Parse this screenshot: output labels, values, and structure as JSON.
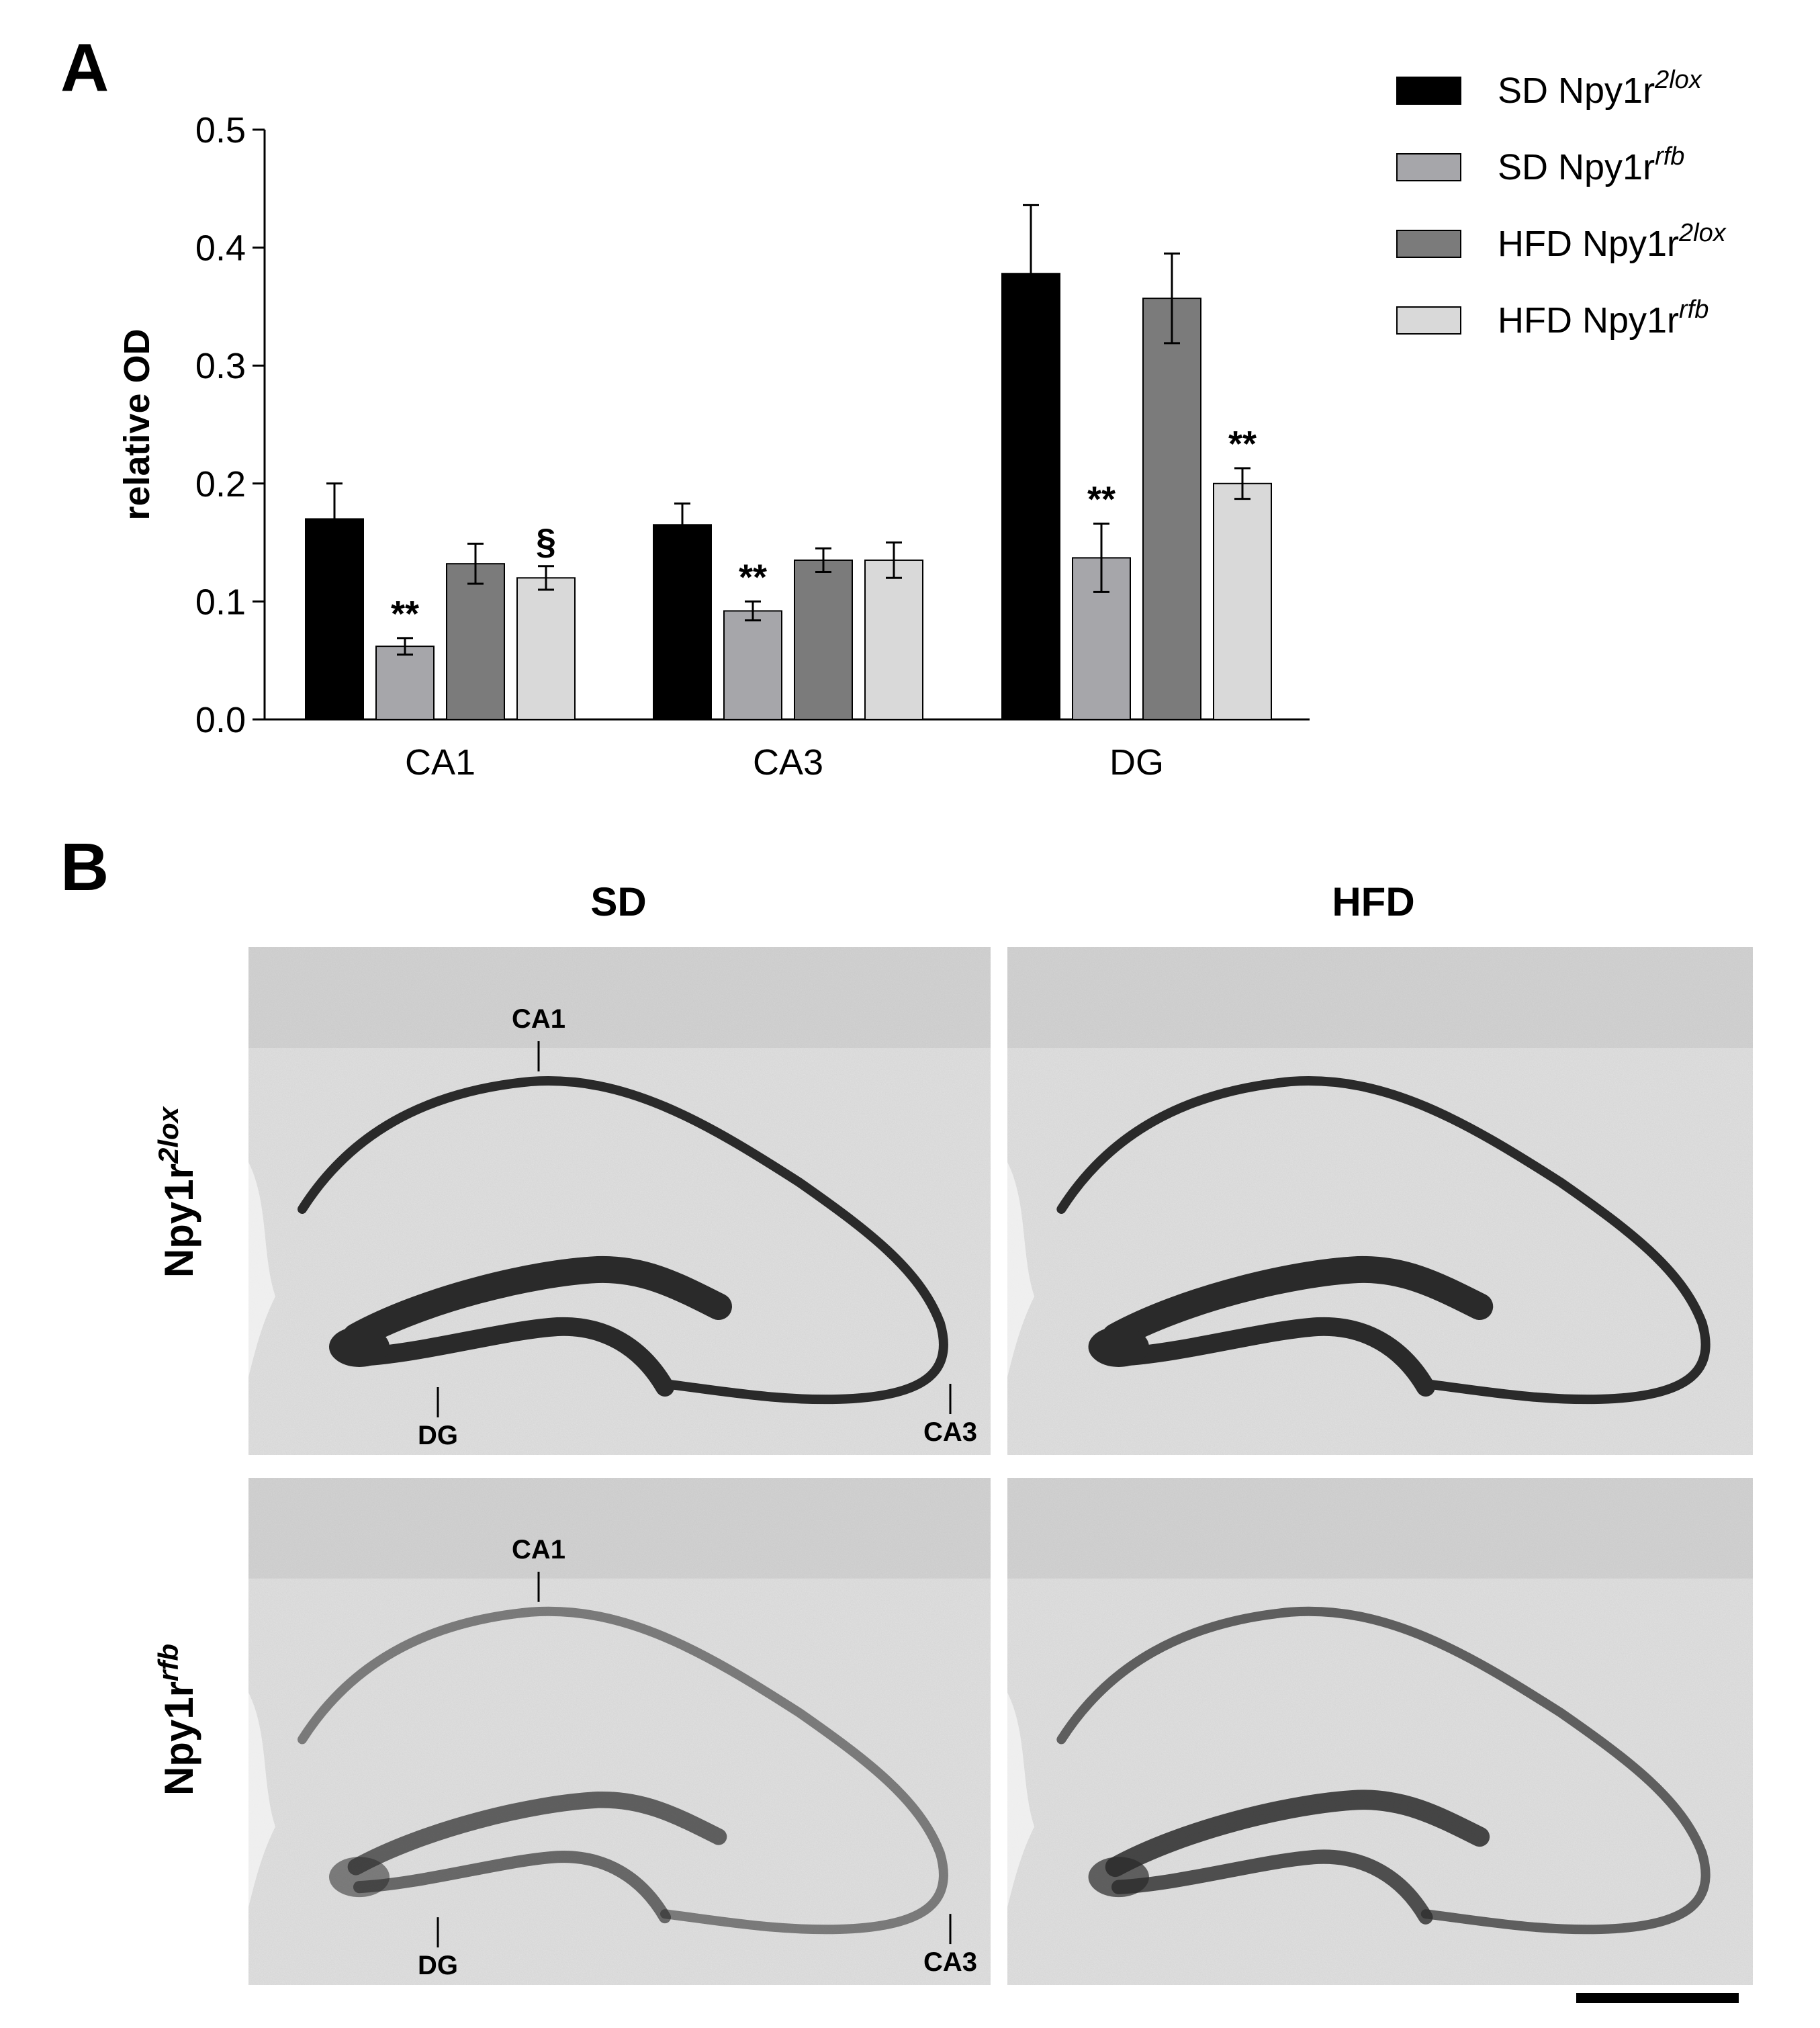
{
  "panels": {
    "a_label": "A",
    "b_label": "B"
  },
  "chart_data": {
    "type": "bar",
    "categories": [
      "CA1",
      "CA3",
      "DG"
    ],
    "ylabel": "relative OD",
    "xlabel": "",
    "ylim": [
      0,
      0.5
    ],
    "yticks": [
      "0.0",
      "0.1",
      "0.2",
      "0.3",
      "0.4",
      "0.5"
    ],
    "grid": false,
    "legend_position": "top-right",
    "series": [
      {
        "name": "SD Npy1r",
        "name_sup": "2lox",
        "color": "#000000",
        "values": [
          0.17,
          0.165,
          0.378
        ],
        "errors": [
          0.03,
          0.018,
          0.058
        ],
        "annotations": [
          "",
          "",
          ""
        ]
      },
      {
        "name": "SD Npy1r",
        "name_sup": "rfb",
        "color": "#a6a6aa",
        "values": [
          0.062,
          0.092,
          0.137
        ],
        "errors": [
          0.007,
          0.008,
          0.029
        ],
        "annotations": [
          "**",
          "**",
          "**"
        ]
      },
      {
        "name": "HFD Npy1r",
        "name_sup": "2lox",
        "color": "#7b7b7b",
        "values": [
          0.132,
          0.135,
          0.357
        ],
        "errors": [
          0.017,
          0.01,
          0.038
        ],
        "annotations": [
          "",
          "",
          ""
        ]
      },
      {
        "name": "HFD Npy1r",
        "name_sup": "rfb",
        "color": "#d9d9d9",
        "values": [
          0.12,
          0.135,
          0.2
        ],
        "errors": [
          0.01,
          0.015,
          0.013
        ],
        "annotations": [
          "§",
          "",
          "**"
        ]
      }
    ]
  },
  "micrographs": {
    "col_headers": [
      "SD",
      "HFD"
    ],
    "row_headers": [
      {
        "base": "Npy1r",
        "sup": "2lox"
      },
      {
        "base": "Npy1r",
        "sup": "rfb"
      }
    ],
    "region_labels": {
      "ca1": "CA1",
      "ca3": "CA3",
      "dg": "DG"
    },
    "background_color": "#e2e2e2",
    "stain_color": "#2a2a2a"
  }
}
